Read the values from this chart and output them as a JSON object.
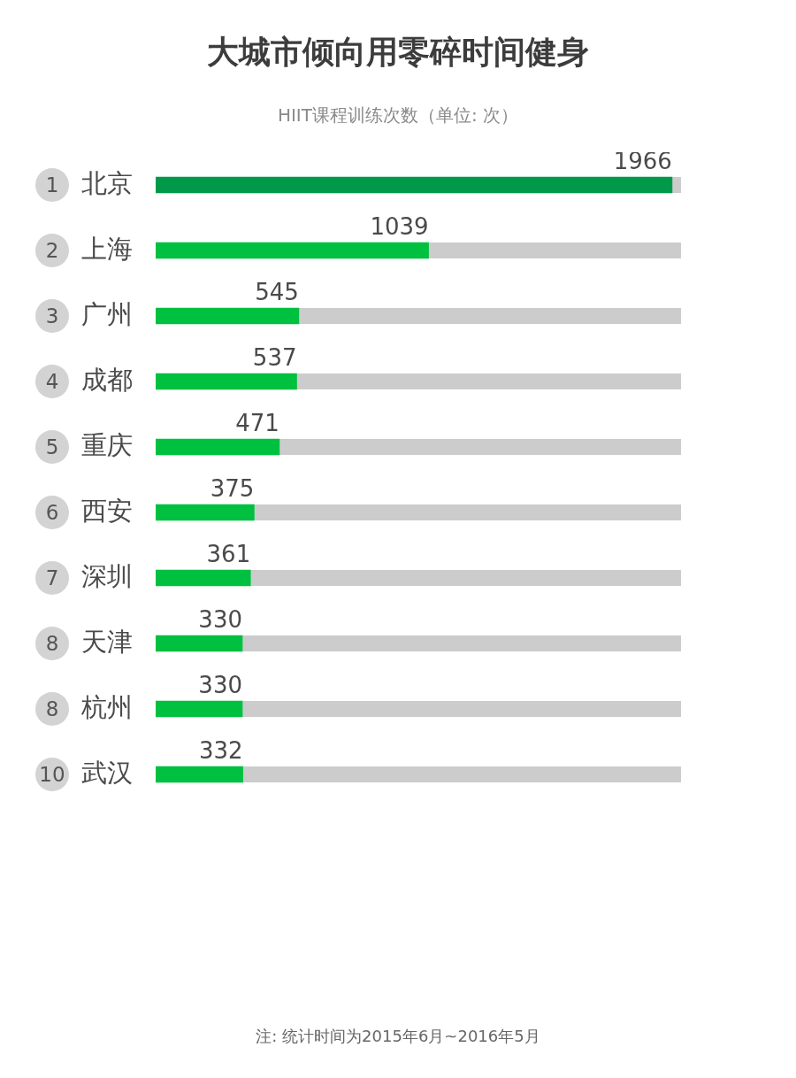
{
  "chart_data": {
    "type": "bar",
    "orientation": "horizontal",
    "title": "大城市倾向用零碎时间健身",
    "subtitle": "HIIT课程训练次数（单位: 次）",
    "categories": [
      "北京",
      "上海",
      "广州",
      "成都",
      "重庆",
      "西安",
      "深圳",
      "天津",
      "杭州",
      "武汉"
    ],
    "values": [
      1966,
      1039,
      545,
      537,
      471,
      375,
      361,
      330,
      330,
      332
    ],
    "colors": [
      "#00994a",
      "#00c040",
      "#00c040",
      "#00c040",
      "#00c040",
      "#00c040",
      "#00c040",
      "#00c040",
      "#00c040",
      "#00c040"
    ],
    "xlim": [
      0,
      2000
    ],
    "tick_labels": "y",
    "data_labels": true,
    "annotations": [
      "1",
      "2",
      "3",
      "4",
      "5",
      "6",
      "7",
      "8",
      "8",
      "10",
      "注: 统计时间为2015年6月~2016年5月"
    ]
  }
}
